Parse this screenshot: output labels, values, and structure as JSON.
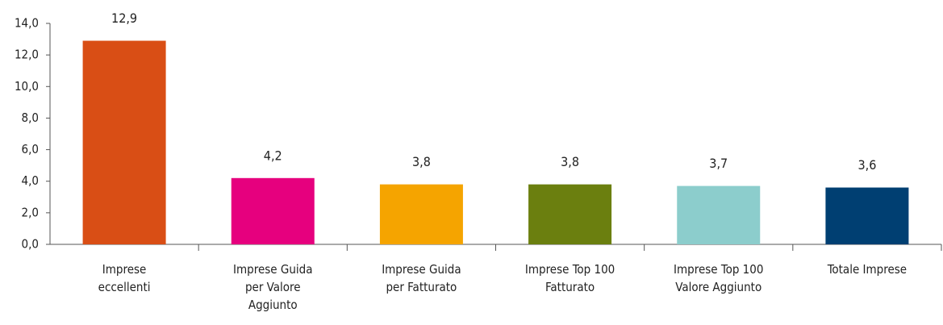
{
  "chart_data": {
    "type": "bar",
    "categories": [
      "Imprese eccellenti",
      "Imprese Guida per Valore Aggiunto",
      "Imprese Guida per Fatturato",
      "Imprese Top 100 Fatturato",
      "Imprese Top 100 Valore Aggiunto",
      "Totale Imprese"
    ],
    "values": [
      12.9,
      4.2,
      3.8,
      3.8,
      3.7,
      3.6
    ],
    "value_labels": [
      "12,9",
      "4,2",
      "3,8",
      "3,8",
      "3,7",
      "3,6"
    ],
    "colors": [
      "#d94e15",
      "#e6007e",
      "#f5a400",
      "#6b7f0f",
      "#8ccdcc",
      "#003f72"
    ],
    "ylim": [
      0,
      14
    ],
    "yticks": [
      {
        "value": 0,
        "label": "0,0"
      },
      {
        "value": 2,
        "label": "2,0"
      },
      {
        "value": 4,
        "label": "4,0"
      },
      {
        "value": 6,
        "label": "6,0"
      },
      {
        "value": 8,
        "label": "8,0"
      },
      {
        "value": 10,
        "label": "10,0"
      },
      {
        "value": 12,
        "label": "12,0"
      },
      {
        "value": 14,
        "label": "14,0"
      }
    ],
    "grid": false
  }
}
